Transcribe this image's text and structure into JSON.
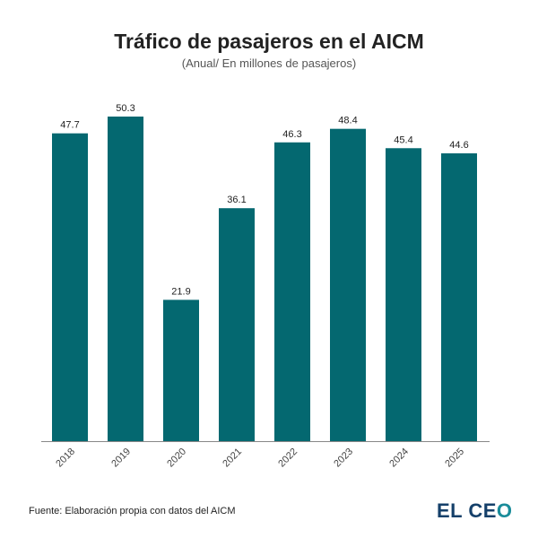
{
  "chart_data": {
    "type": "bar",
    "title": "Tráfico de pasajeros en el AICM",
    "subtitle": "(Anual/ En millones de pasajeros)",
    "categories": [
      "2018",
      "2019",
      "2020",
      "2021",
      "2022",
      "2023",
      "2024",
      "2025"
    ],
    "values": [
      47.7,
      50.3,
      21.9,
      36.1,
      46.3,
      48.4,
      45.4,
      44.6
    ],
    "data_labels": [
      "47.7",
      "50.3",
      "21.9",
      "36.1",
      "46.3",
      "48.4",
      "45.4",
      "44.6"
    ],
    "xlabel": "",
    "ylabel": "",
    "ylim": [
      0,
      50.3
    ],
    "grid": false,
    "bar_color": "#046870"
  },
  "footer": {
    "source": "Fuente: Elaboración propia con datos del AICM",
    "logo": "EL CEO",
    "logo_main": "EL CE",
    "logo_o": "O"
  }
}
